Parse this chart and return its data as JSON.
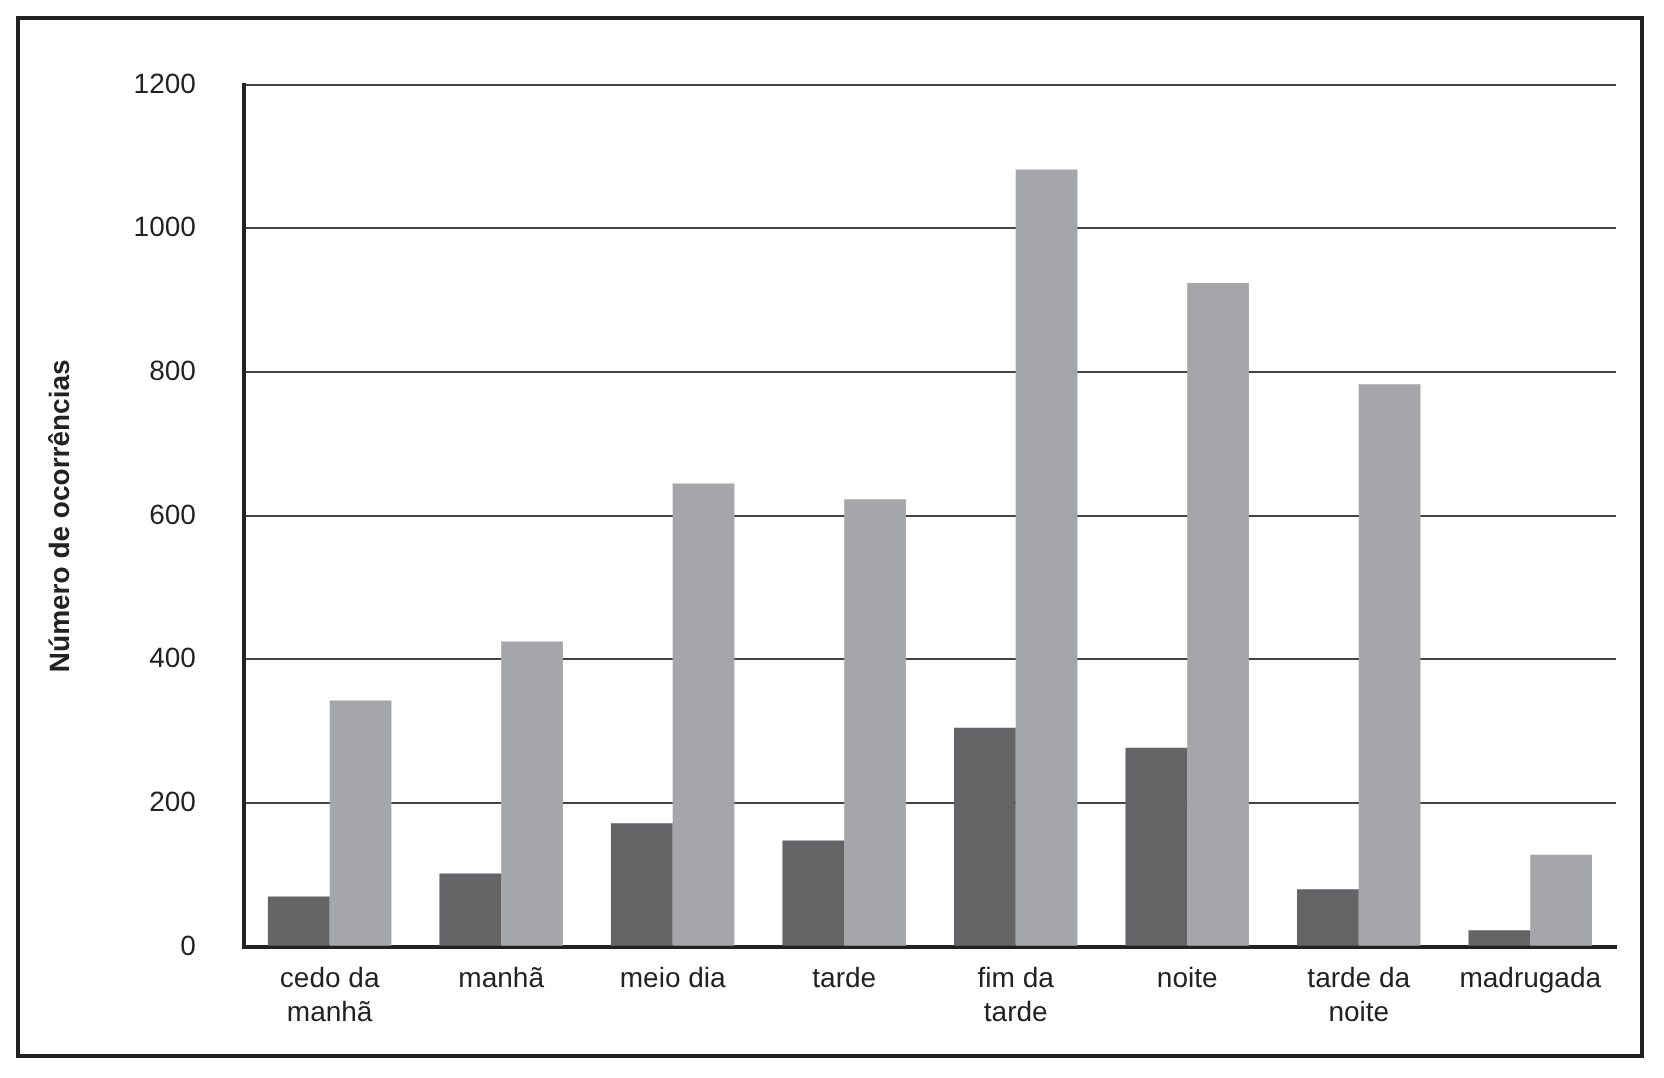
{
  "chart_data": {
    "type": "bar",
    "ylabel": "Número de ocorrências",
    "categories": [
      "cedo da manhã",
      "manhã",
      "meio dia",
      "tarde",
      "fim da tarde",
      "noite",
      "tarde da noite",
      "madrugada"
    ],
    "series": [
      {
        "color": "#646466",
        "values": [
          70,
          102,
          172,
          148,
          305,
          277,
          80,
          23
        ]
      },
      {
        "color": "#a5a6a9",
        "values": [
          343,
          425,
          645,
          623,
          1082,
          924,
          783,
          128
        ]
      }
    ],
    "ylim": [
      0,
      1200
    ],
    "yticks": [
      0,
      200,
      400,
      600,
      800,
      1000,
      1200
    ],
    "grid": "y"
  }
}
